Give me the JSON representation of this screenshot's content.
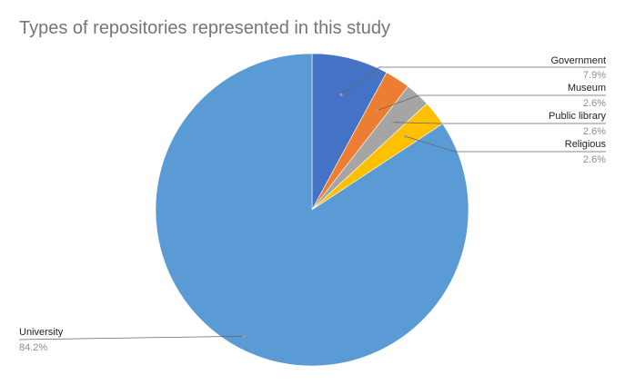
{
  "chart_data": {
    "type": "pie",
    "title": "Types of repositories represented in this study",
    "slices": [
      {
        "name": "Government",
        "value": 7.9,
        "label": "7.9%",
        "color": "#4472c4"
      },
      {
        "name": "Museum",
        "value": 2.6,
        "label": "2.6%",
        "color": "#ed7d31"
      },
      {
        "name": "Public library",
        "value": 2.6,
        "label": "2.6%",
        "color": "#a5a5a5"
      },
      {
        "name": "Religious",
        "value": 2.6,
        "label": "2.6%",
        "color": "#ffc000"
      },
      {
        "name": "University",
        "value": 84.2,
        "label": "84.2%",
        "color": "#5b9bd5"
      }
    ],
    "start_angle_deg": 0,
    "direction": "clockwise",
    "legend": "leader-line labels"
  }
}
